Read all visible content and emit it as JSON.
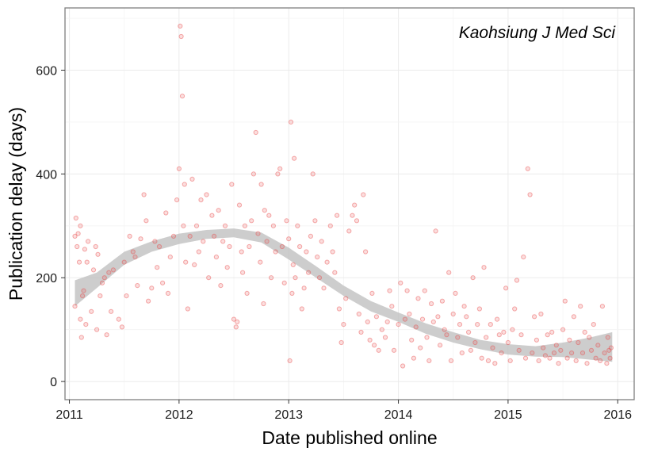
{
  "chart_data": {
    "type": "scatter",
    "title": "",
    "annotation": "Kaohsiung J Med Sci",
    "xlabel": "Date published online",
    "ylabel": "Publication delay (days)",
    "xlim": [
      2010.96,
      2016.15
    ],
    "ylim": [
      -35,
      720
    ],
    "x_ticks": [
      2011,
      2012,
      2013,
      2014,
      2015,
      2016
    ],
    "x_tick_labels": [
      "2011",
      "2012",
      "2013",
      "2014",
      "2015",
      "2016"
    ],
    "y_ticks": [
      0,
      200,
      400,
      600
    ],
    "y_tick_labels": [
      "0",
      "200",
      "400",
      "600"
    ],
    "grid": true,
    "point_color": "#e8494a",
    "ribbon_color": "#bfbfbf",
    "points": [
      [
        2011.05,
        145
      ],
      [
        2011.05,
        280
      ],
      [
        2011.06,
        315
      ],
      [
        2011.07,
        260
      ],
      [
        2011.08,
        285
      ],
      [
        2011.09,
        230
      ],
      [
        2011.1,
        300
      ],
      [
        2011.1,
        120
      ],
      [
        2011.11,
        85
      ],
      [
        2011.12,
        165
      ],
      [
        2011.13,
        175
      ],
      [
        2011.14,
        255
      ],
      [
        2011.15,
        110
      ],
      [
        2011.16,
        230
      ],
      [
        2011.17,
        270
      ],
      [
        2011.2,
        135
      ],
      [
        2011.22,
        215
      ],
      [
        2011.24,
        260
      ],
      [
        2011.25,
        100
      ],
      [
        2011.26,
        245
      ],
      [
        2011.28,
        165
      ],
      [
        2011.3,
        190
      ],
      [
        2011.32,
        200
      ],
      [
        2011.34,
        90
      ],
      [
        2011.36,
        210
      ],
      [
        2011.38,
        135
      ],
      [
        2011.4,
        215
      ],
      [
        2011.45,
        120
      ],
      [
        2011.48,
        105
      ],
      [
        2011.5,
        230
      ],
      [
        2011.52,
        165
      ],
      [
        2011.55,
        280
      ],
      [
        2011.58,
        250
      ],
      [
        2011.6,
        240
      ],
      [
        2011.62,
        185
      ],
      [
        2011.65,
        275
      ],
      [
        2011.68,
        360
      ],
      [
        2011.7,
        310
      ],
      [
        2011.72,
        155
      ],
      [
        2011.75,
        180
      ],
      [
        2011.78,
        270
      ],
      [
        2011.8,
        220
      ],
      [
        2011.82,
        260
      ],
      [
        2011.85,
        190
      ],
      [
        2011.88,
        325
      ],
      [
        2011.9,
        170
      ],
      [
        2011.92,
        240
      ],
      [
        2011.95,
        280
      ],
      [
        2011.98,
        350
      ],
      [
        2012.0,
        410
      ],
      [
        2012.01,
        685
      ],
      [
        2012.02,
        665
      ],
      [
        2012.03,
        550
      ],
      [
        2012.04,
        300
      ],
      [
        2012.05,
        380
      ],
      [
        2012.06,
        230
      ],
      [
        2012.08,
        140
      ],
      [
        2012.1,
        280
      ],
      [
        2012.12,
        390
      ],
      [
        2012.14,
        225
      ],
      [
        2012.16,
        300
      ],
      [
        2012.18,
        250
      ],
      [
        2012.2,
        350
      ],
      [
        2012.22,
        270
      ],
      [
        2012.25,
        360
      ],
      [
        2012.27,
        200
      ],
      [
        2012.3,
        320
      ],
      [
        2012.32,
        280
      ],
      [
        2012.34,
        240
      ],
      [
        2012.36,
        330
      ],
      [
        2012.38,
        185
      ],
      [
        2012.4,
        270
      ],
      [
        2012.42,
        300
      ],
      [
        2012.44,
        220
      ],
      [
        2012.46,
        260
      ],
      [
        2012.48,
        380
      ],
      [
        2012.5,
        120
      ],
      [
        2012.52,
        105
      ],
      [
        2012.53,
        115
      ],
      [
        2012.55,
        340
      ],
      [
        2012.57,
        250
      ],
      [
        2012.58,
        210
      ],
      [
        2012.6,
        300
      ],
      [
        2012.62,
        170
      ],
      [
        2012.64,
        260
      ],
      [
        2012.66,
        310
      ],
      [
        2012.68,
        400
      ],
      [
        2012.7,
        480
      ],
      [
        2012.72,
        285
      ],
      [
        2012.74,
        230
      ],
      [
        2012.75,
        380
      ],
      [
        2012.77,
        150
      ],
      [
        2012.78,
        330
      ],
      [
        2012.8,
        270
      ],
      [
        2012.82,
        320
      ],
      [
        2012.84,
        200
      ],
      [
        2012.86,
        300
      ],
      [
        2012.88,
        250
      ],
      [
        2012.9,
        400
      ],
      [
        2012.92,
        410
      ],
      [
        2012.94,
        260
      ],
      [
        2012.96,
        190
      ],
      [
        2012.98,
        310
      ],
      [
        2013.0,
        275
      ],
      [
        2013.01,
        40
      ],
      [
        2013.02,
        500
      ],
      [
        2013.03,
        170
      ],
      [
        2013.04,
        225
      ],
      [
        2013.05,
        430
      ],
      [
        2013.06,
        200
      ],
      [
        2013.08,
        300
      ],
      [
        2013.1,
        260
      ],
      [
        2013.12,
        140
      ],
      [
        2013.14,
        180
      ],
      [
        2013.16,
        250
      ],
      [
        2013.18,
        210
      ],
      [
        2013.2,
        280
      ],
      [
        2013.22,
        400
      ],
      [
        2013.24,
        310
      ],
      [
        2013.26,
        240
      ],
      [
        2013.28,
        200
      ],
      [
        2013.3,
        270
      ],
      [
        2013.32,
        180
      ],
      [
        2013.35,
        230
      ],
      [
        2013.38,
        300
      ],
      [
        2013.4,
        250
      ],
      [
        2013.42,
        210
      ],
      [
        2013.44,
        320
      ],
      [
        2013.46,
        140
      ],
      [
        2013.48,
        75
      ],
      [
        2013.5,
        110
      ],
      [
        2013.52,
        160
      ],
      [
        2013.55,
        290
      ],
      [
        2013.58,
        320
      ],
      [
        2013.6,
        340
      ],
      [
        2013.62,
        310
      ],
      [
        2013.64,
        130
      ],
      [
        2013.66,
        95
      ],
      [
        2013.68,
        360
      ],
      [
        2013.7,
        250
      ],
      [
        2013.72,
        115
      ],
      [
        2013.74,
        80
      ],
      [
        2013.76,
        170
      ],
      [
        2013.78,
        70
      ],
      [
        2013.8,
        125
      ],
      [
        2013.82,
        60
      ],
      [
        2013.85,
        100
      ],
      [
        2013.88,
        85
      ],
      [
        2013.9,
        115
      ],
      [
        2013.92,
        175
      ],
      [
        2013.94,
        145
      ],
      [
        2013.96,
        60
      ],
      [
        2014.0,
        110
      ],
      [
        2014.02,
        190
      ],
      [
        2014.04,
        30
      ],
      [
        2014.06,
        120
      ],
      [
        2014.08,
        175
      ],
      [
        2014.1,
        130
      ],
      [
        2014.12,
        80
      ],
      [
        2014.14,
        45
      ],
      [
        2014.16,
        105
      ],
      [
        2014.18,
        160
      ],
      [
        2014.2,
        65
      ],
      [
        2014.22,
        120
      ],
      [
        2014.24,
        175
      ],
      [
        2014.26,
        85
      ],
      [
        2014.28,
        40
      ],
      [
        2014.3,
        150
      ],
      [
        2014.32,
        115
      ],
      [
        2014.34,
        290
      ],
      [
        2014.36,
        125
      ],
      [
        2014.38,
        70
      ],
      [
        2014.4,
        155
      ],
      [
        2014.42,
        100
      ],
      [
        2014.44,
        90
      ],
      [
        2014.46,
        210
      ],
      [
        2014.48,
        40
      ],
      [
        2014.5,
        130
      ],
      [
        2014.52,
        170
      ],
      [
        2014.54,
        85
      ],
      [
        2014.56,
        110
      ],
      [
        2014.58,
        55
      ],
      [
        2014.6,
        145
      ],
      [
        2014.62,
        125
      ],
      [
        2014.64,
        95
      ],
      [
        2014.66,
        60
      ],
      [
        2014.68,
        200
      ],
      [
        2014.7,
        75
      ],
      [
        2014.72,
        110
      ],
      [
        2014.74,
        140
      ],
      [
        2014.76,
        45
      ],
      [
        2014.78,
        220
      ],
      [
        2014.8,
        85
      ],
      [
        2014.82,
        40
      ],
      [
        2014.84,
        110
      ],
      [
        2014.86,
        65
      ],
      [
        2014.88,
        35
      ],
      [
        2014.9,
        120
      ],
      [
        2014.92,
        90
      ],
      [
        2014.94,
        55
      ],
      [
        2014.96,
        95
      ],
      [
        2014.98,
        180
      ],
      [
        2015.0,
        75
      ],
      [
        2015.02,
        40
      ],
      [
        2015.04,
        100
      ],
      [
        2015.06,
        140
      ],
      [
        2015.08,
        195
      ],
      [
        2015.1,
        60
      ],
      [
        2015.12,
        90
      ],
      [
        2015.14,
        240
      ],
      [
        2015.16,
        45
      ],
      [
        2015.18,
        410
      ],
      [
        2015.2,
        360
      ],
      [
        2015.22,
        55
      ],
      [
        2015.24,
        125
      ],
      [
        2015.26,
        80
      ],
      [
        2015.28,
        40
      ],
      [
        2015.3,
        130
      ],
      [
        2015.32,
        65
      ],
      [
        2015.34,
        50
      ],
      [
        2015.36,
        90
      ],
      [
        2015.38,
        45
      ],
      [
        2015.4,
        95
      ],
      [
        2015.42,
        55
      ],
      [
        2015.44,
        70
      ],
      [
        2015.46,
        35
      ],
      [
        2015.48,
        60
      ],
      [
        2015.5,
        100
      ],
      [
        2015.52,
        155
      ],
      [
        2015.54,
        45
      ],
      [
        2015.56,
        80
      ],
      [
        2015.58,
        55
      ],
      [
        2015.6,
        125
      ],
      [
        2015.62,
        40
      ],
      [
        2015.64,
        75
      ],
      [
        2015.66,
        145
      ],
      [
        2015.68,
        55
      ],
      [
        2015.7,
        95
      ],
      [
        2015.72,
        35
      ],
      [
        2015.74,
        85
      ],
      [
        2015.76,
        60
      ],
      [
        2015.78,
        110
      ],
      [
        2015.8,
        45
      ],
      [
        2015.82,
        70
      ],
      [
        2015.84,
        40
      ],
      [
        2015.86,
        145
      ],
      [
        2015.88,
        55
      ],
      [
        2015.9,
        35
      ],
      [
        2015.91,
        85
      ],
      [
        2015.92,
        60
      ],
      [
        2015.93,
        45
      ],
      [
        2015.94,
        65
      ]
    ],
    "smooth_band": [
      [
        2011.05,
        145,
        195
      ],
      [
        2011.25,
        180,
        210
      ],
      [
        2011.5,
        225,
        250
      ],
      [
        2011.75,
        250,
        270
      ],
      [
        2012.0,
        265,
        285
      ],
      [
        2012.25,
        275,
        292
      ],
      [
        2012.5,
        278,
        295
      ],
      [
        2012.75,
        268,
        287
      ],
      [
        2013.0,
        235,
        258
      ],
      [
        2013.25,
        200,
        222
      ],
      [
        2013.5,
        165,
        185
      ],
      [
        2013.75,
        135,
        155
      ],
      [
        2014.0,
        115,
        133
      ],
      [
        2014.25,
        92,
        112
      ],
      [
        2014.5,
        75,
        95
      ],
      [
        2014.75,
        62,
        80
      ],
      [
        2015.0,
        52,
        72
      ],
      [
        2015.25,
        48,
        68
      ],
      [
        2015.5,
        47,
        75
      ],
      [
        2015.75,
        42,
        85
      ],
      [
        2015.95,
        38,
        95
      ]
    ]
  }
}
